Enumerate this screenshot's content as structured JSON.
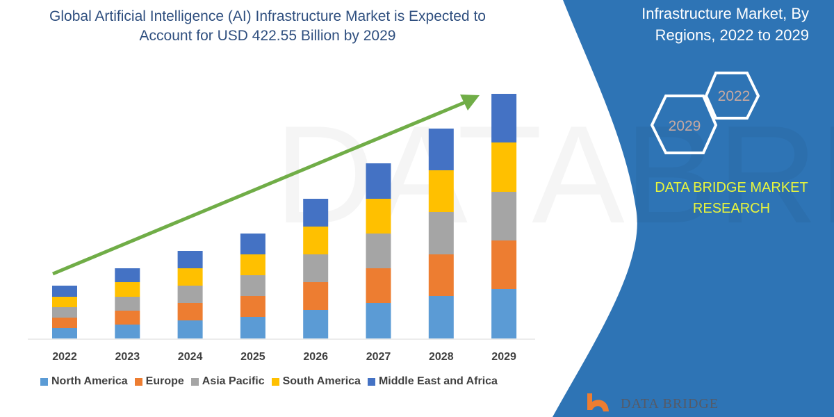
{
  "title": "Global Artificial Intelligence (AI) Infrastructure Market is Expected to Account for USD 422.55 Billion by 2029",
  "side_panel": {
    "title_lines": [
      "Infrastructure Market, By",
      "Regions, 2022 to 2029"
    ],
    "hex_labels": [
      "2022",
      "2029"
    ],
    "brand_lines": [
      "DATA BRIDGE MARKET",
      "RESEARCH"
    ],
    "logo_text": "DATA BRIDGE",
    "panel_color": "#2e74b5",
    "brand_color": "#e8f53c"
  },
  "chart_data": {
    "type": "bar",
    "stacked": true,
    "title": "Global Artificial Intelligence (AI) Infrastructure Market is Expected to Account for USD 422.55 Billion by 2029",
    "categories": [
      "2022",
      "2023",
      "2024",
      "2025",
      "2026",
      "2027",
      "2028",
      "2029"
    ],
    "series": [
      {
        "name": "North America",
        "color": "#5b9bd5",
        "values": [
          15,
          20,
          26,
          31,
          41,
          51,
          61,
          71
        ]
      },
      {
        "name": "Europe",
        "color": "#ed7d31",
        "values": [
          15,
          20,
          25,
          30,
          40,
          50,
          60,
          70
        ]
      },
      {
        "name": "Asia Pacific",
        "color": "#a5a5a5",
        "values": [
          15,
          20,
          25,
          30,
          40,
          50,
          61,
          70
        ]
      },
      {
        "name": "South America",
        "color": "#ffc000",
        "values": [
          15,
          21,
          25,
          30,
          40,
          50,
          60,
          71
        ]
      },
      {
        "name": "Middle East and Africa",
        "color": "#4472c4",
        "values": [
          16,
          20,
          25,
          30,
          40,
          51,
          60,
          70
        ]
      }
    ],
    "ylim": [
      0,
      352
    ],
    "y_axis_shown": false,
    "grid": false,
    "legend": "bottom",
    "trend_arrow_color": "#70ad47"
  }
}
